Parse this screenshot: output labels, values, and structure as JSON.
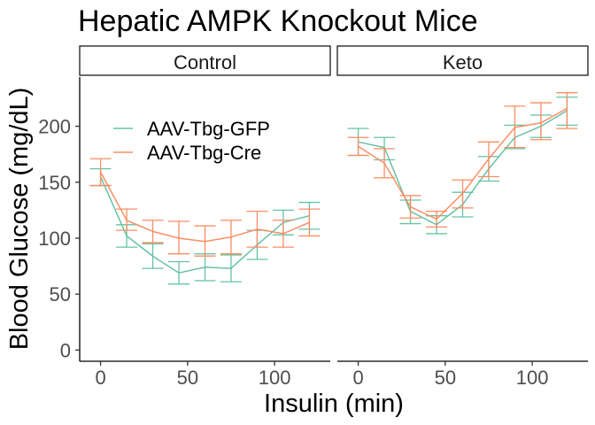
{
  "chart_data": {
    "type": "line",
    "title": "Hepatic AMPK Knockout Mice",
    "xlabel": "Insulin (min)",
    "ylabel": "Blood Glucose (mg/dL)",
    "xlim": [
      -12,
      132
    ],
    "ylim": [
      -10,
      244
    ],
    "x_ticks": [
      0,
      50,
      100
    ],
    "y_ticks": [
      0,
      50,
      100,
      150,
      200
    ],
    "x_tick_labels": [
      "0",
      "50",
      "100"
    ],
    "y_tick_labels": [
      "0",
      "50",
      "100",
      "150",
      "200"
    ],
    "grid": false,
    "legend_position": "top-left inside first panel",
    "legend": [
      "AAV-Tbg-GFP",
      "AAV-Tbg-Cre"
    ],
    "colors": {
      "AAV-Tbg-GFP": "#66c2a5",
      "AAV-Tbg-Cre": "#fc8d62"
    },
    "panels": [
      {
        "name": "Control",
        "x": [
          0,
          15,
          30,
          45,
          60,
          75,
          90,
          105,
          120
        ],
        "series": [
          {
            "name": "AAV-Tbg-GFP",
            "values": [
              155,
              102,
              84,
              69,
              74,
              73,
              94,
              114,
              120
            ],
            "lower": [
              147,
              92,
              73,
              59,
              62,
              61,
              81,
              103,
              108
            ],
            "upper": [
              162,
              112,
              95,
              79,
              86,
              85,
              107,
              125,
              132
            ]
          },
          {
            "name": "AAV-Tbg-Cre",
            "values": [
              159,
              116,
              106,
              100,
              97,
              101,
              108,
              104,
              114
            ],
            "lower": [
              147,
              107,
              96,
              86,
              84,
              86,
              92,
              92,
              102
            ],
            "upper": [
              171,
              126,
              116,
              115,
              111,
              116,
              124,
              116,
              126
            ]
          }
        ]
      },
      {
        "name": "Keto",
        "x": [
          0,
          15,
          30,
          45,
          60,
          75,
          90,
          105,
          120
        ],
        "series": [
          {
            "name": "AAV-Tbg-GFP",
            "values": [
              186,
              181,
              124,
              112,
              130,
              162,
              190,
              200,
              214
            ],
            "lower": [
              174,
              170,
              113,
              104,
              119,
              151,
              180,
              190,
              201
            ],
            "upper": [
              198,
              190,
              134,
              120,
              141,
              173,
              201,
              210,
              226
            ]
          },
          {
            "name": "AAV-Tbg-Cre",
            "values": [
              182,
              167,
              128,
              117,
              140,
              171,
              199,
              203,
              216
            ],
            "lower": [
              174,
              154,
              118,
              110,
              127,
              155,
              181,
              188,
              198
            ],
            "upper": [
              190,
              180,
              138,
              124,
              152,
              186,
              218,
              221,
              230
            ]
          }
        ]
      }
    ]
  }
}
